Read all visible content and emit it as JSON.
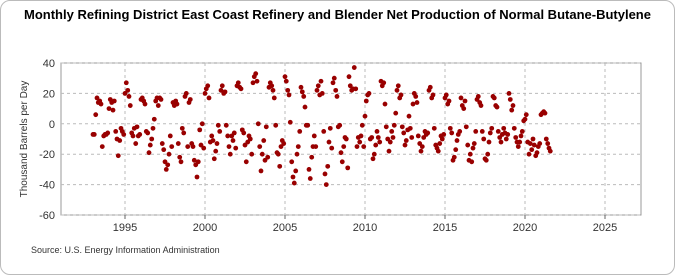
{
  "chart_data": {
    "type": "scatter",
    "title": "Monthly Refining District East Coast Refinery and Blender Net Production of Normal Butane-Butylene",
    "y_label": "Thousand Barrels per Day",
    "source": "Source: U.S. Energy Information Administration",
    "xlim": [
      1991,
      2027.25
    ],
    "ylim": [
      -60,
      40
    ],
    "xticks": [
      1995,
      2000,
      2005,
      2010,
      2015,
      2020,
      2025
    ],
    "yticks": [
      -60,
      -40,
      -20,
      0,
      20,
      40
    ],
    "grid": true,
    "series": [
      {
        "name": "Net Production",
        "color": "#990000",
        "x": [
          1993.0,
          1993.08,
          1993.17,
          1993.25,
          1993.33,
          1993.42,
          1993.5,
          1993.58,
          1993.67,
          1993.75,
          1993.83,
          1993.92,
          1994.0,
          1994.08,
          1994.17,
          1994.25,
          1994.33,
          1994.42,
          1994.5,
          1994.58,
          1994.67,
          1994.75,
          1994.83,
          1994.92,
          1995.0,
          1995.08,
          1995.17,
          1995.25,
          1995.33,
          1995.42,
          1995.5,
          1995.58,
          1995.67,
          1995.75,
          1995.83,
          1995.92,
          1996.0,
          1996.08,
          1996.17,
          1996.25,
          1996.33,
          1996.42,
          1996.5,
          1996.58,
          1996.67,
          1996.75,
          1996.83,
          1996.92,
          1997.0,
          1997.08,
          1997.17,
          1997.25,
          1997.33,
          1997.42,
          1997.5,
          1997.58,
          1997.67,
          1997.75,
          1997.83,
          1997.92,
          1998.0,
          1998.08,
          1998.17,
          1998.25,
          1998.33,
          1998.42,
          1998.5,
          1998.58,
          1998.67,
          1998.75,
          1998.83,
          1998.92,
          1999.0,
          1999.08,
          1999.17,
          1999.25,
          1999.33,
          1999.42,
          1999.5,
          1999.58,
          1999.67,
          1999.75,
          1999.83,
          1999.92,
          2000.0,
          2000.08,
          2000.17,
          2000.25,
          2000.33,
          2000.42,
          2000.5,
          2000.58,
          2000.67,
          2000.75,
          2000.83,
          2000.92,
          2001.0,
          2001.08,
          2001.17,
          2001.25,
          2001.33,
          2001.42,
          2001.5,
          2001.58,
          2001.67,
          2001.75,
          2001.83,
          2001.92,
          2002.0,
          2002.08,
          2002.17,
          2002.25,
          2002.33,
          2002.42,
          2002.5,
          2002.58,
          2002.67,
          2002.75,
          2002.83,
          2002.92,
          2003.0,
          2003.08,
          2003.17,
          2003.25,
          2003.33,
          2003.42,
          2003.5,
          2003.58,
          2003.67,
          2003.75,
          2003.83,
          2003.92,
          2004.0,
          2004.08,
          2004.17,
          2004.25,
          2004.33,
          2004.42,
          2004.5,
          2004.58,
          2004.67,
          2004.75,
          2004.83,
          2004.92,
          2005.0,
          2005.08,
          2005.17,
          2005.25,
          2005.33,
          2005.42,
          2005.5,
          2005.58,
          2005.67,
          2005.75,
          2005.83,
          2005.92,
          2006.0,
          2006.08,
          2006.17,
          2006.25,
          2006.33,
          2006.42,
          2006.5,
          2006.58,
          2006.67,
          2006.75,
          2006.83,
          2006.92,
          2007.0,
          2007.08,
          2007.17,
          2007.25,
          2007.33,
          2007.42,
          2007.5,
          2007.58,
          2007.67,
          2007.75,
          2007.83,
          2007.92,
          2008.0,
          2008.08,
          2008.17,
          2008.25,
          2008.33,
          2008.42,
          2008.5,
          2008.58,
          2008.67,
          2008.75,
          2008.83,
          2008.92,
          2009.0,
          2009.08,
          2009.17,
          2009.25,
          2009.33,
          2009.42,
          2009.5,
          2009.58,
          2009.67,
          2009.75,
          2009.83,
          2009.92,
          2010.0,
          2010.08,
          2010.17,
          2010.25,
          2010.33,
          2010.42,
          2010.5,
          2010.58,
          2010.67,
          2010.75,
          2010.83,
          2010.92,
          2011.0,
          2011.08,
          2011.17,
          2011.25,
          2011.33,
          2011.42,
          2011.5,
          2011.58,
          2011.67,
          2011.75,
          2011.83,
          2011.92,
          2012.0,
          2012.08,
          2012.17,
          2012.25,
          2012.33,
          2012.42,
          2012.5,
          2012.58,
          2012.67,
          2012.75,
          2012.83,
          2012.92,
          2013.0,
          2013.08,
          2013.17,
          2013.25,
          2013.33,
          2013.42,
          2013.5,
          2013.58,
          2013.67,
          2013.75,
          2013.83,
          2013.92,
          2014.0,
          2014.08,
          2014.17,
          2014.25,
          2014.33,
          2014.42,
          2014.5,
          2014.58,
          2014.67,
          2014.75,
          2014.83,
          2014.92,
          2015.0,
          2015.08,
          2015.17,
          2015.25,
          2015.33,
          2015.42,
          2015.5,
          2015.58,
          2015.67,
          2015.75,
          2015.83,
          2015.92,
          2016.0,
          2016.08,
          2016.17,
          2016.25,
          2016.33,
          2016.42,
          2016.5,
          2016.58,
          2016.67,
          2016.75,
          2016.83,
          2016.92,
          2017.0,
          2017.08,
          2017.17,
          2017.25,
          2017.33,
          2017.42,
          2017.5,
          2017.58,
          2017.67,
          2017.75,
          2017.83,
          2017.92,
          2018.0,
          2018.08,
          2018.17,
          2018.25,
          2018.33,
          2018.42,
          2018.5,
          2018.58,
          2018.67,
          2018.75,
          2018.83,
          2018.92,
          2019.0,
          2019.08,
          2019.17,
          2019.25,
          2019.33,
          2019.42,
          2019.5,
          2019.58,
          2019.67,
          2019.75,
          2019.83,
          2019.92,
          2020.0,
          2020.08,
          2020.17,
          2020.25,
          2020.33,
          2020.42,
          2020.5,
          2020.58,
          2020.67,
          2020.75,
          2020.83,
          2020.92,
          2021.0,
          2021.08,
          2021.17,
          2021.25,
          2021.33,
          2021.42,
          2021.5,
          2021.58
        ],
        "values": [
          -7,
          -7,
          6,
          17,
          14,
          15,
          13,
          -15,
          -8,
          -7,
          -7,
          -6,
          10,
          16,
          14,
          9,
          15,
          -5,
          -10,
          -21,
          -11,
          -3,
          -5,
          -7,
          20,
          27,
          22,
          18,
          12,
          -6,
          -8,
          -3,
          -13,
          -2,
          -8,
          -7,
          16,
          17,
          15,
          13,
          -5,
          -6,
          -19,
          -14,
          -10,
          -3,
          3,
          15,
          17,
          12,
          17,
          16,
          -13,
          -17,
          -25,
          -30,
          -27,
          -20,
          -8,
          -15,
          14,
          12,
          15,
          13,
          -13,
          -22,
          -25,
          -3,
          -6,
          18,
          20,
          -15,
          14,
          16,
          -13,
          -15,
          -24,
          -27,
          -35,
          -25,
          -4,
          -14,
          0,
          -16,
          20,
          23,
          25,
          17,
          -12,
          -8,
          -11,
          -23,
          -18,
          -13,
          -1,
          -5,
          22,
          25,
          20,
          21,
          -1,
          -8,
          -15,
          -20,
          -8,
          -11,
          -6,
          -16,
          25,
          27,
          24,
          23,
          -4,
          -6,
          -14,
          -25,
          -12,
          -8,
          -10,
          -20,
          27,
          31,
          33,
          28,
          0,
          -15,
          -31,
          -20,
          -11,
          -24,
          -2,
          -22,
          24,
          27,
          25,
          22,
          17,
          -1,
          -19,
          -20,
          -28,
          -15,
          -11,
          -13,
          31,
          28,
          22,
          19,
          1,
          -25,
          -35,
          -39,
          -31,
          -20,
          -15,
          -5,
          24,
          21,
          18,
          11,
          -1,
          -1,
          -30,
          -36,
          -22,
          -15,
          -8,
          -15,
          22,
          25,
          19,
          28,
          20,
          -5,
          -33,
          -40,
          -28,
          -12,
          -3,
          -16,
          27,
          30,
          22,
          18,
          -2,
          -1,
          -19,
          -25,
          -15,
          -9,
          -10,
          -29,
          31,
          25,
          22,
          23,
          37,
          23,
          -15,
          -9,
          -12,
          -8,
          -1,
          -15,
          5,
          15,
          19,
          20,
          -10,
          -9,
          -23,
          -20,
          -14,
          -5,
          -9,
          -12,
          28,
          25,
          27,
          13,
          -2,
          -10,
          -18,
          -12,
          -5,
          -9,
          -1,
          7,
          22,
          25,
          17,
          19,
          -2,
          -6,
          -14,
          -11,
          -4,
          5,
          -3,
          -9,
          13,
          20,
          18,
          14,
          -8,
          -13,
          -18,
          -15,
          -9,
          -5,
          -7,
          -6,
          22,
          24,
          17,
          19,
          -3,
          -14,
          -16,
          -18,
          -13,
          -8,
          -10,
          -7,
          17,
          19,
          13,
          15,
          -3,
          -6,
          -24,
          -22,
          -17,
          -11,
          -7,
          -5,
          17,
          12,
          10,
          15,
          -2,
          -14,
          -24,
          -20,
          -25,
          -16,
          -13,
          -5,
          16,
          18,
          14,
          12,
          -5,
          -10,
          -23,
          -24,
          -20,
          -12,
          -6,
          -3,
          18,
          17,
          12,
          11,
          -5,
          -9,
          -12,
          -7,
          -3,
          -6,
          -10,
          -7,
          20,
          16,
          9,
          12,
          -3,
          -9,
          -12,
          -15,
          -12,
          -8,
          -5,
          2,
          3,
          6,
          -12,
          -20,
          -13,
          -17,
          -10,
          -14,
          -21,
          -19,
          -15,
          -13,
          6,
          7,
          8,
          7,
          -10,
          -13,
          -16,
          -18
        ]
      }
    ]
  }
}
